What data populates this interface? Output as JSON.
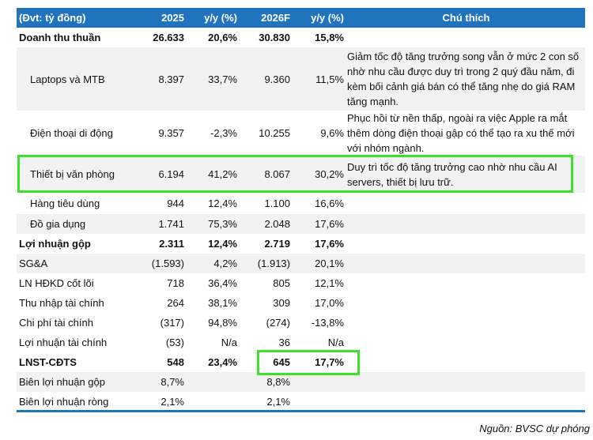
{
  "header": {
    "unit": "(Đvt: tỷ đồng)",
    "col_2025": "2025",
    "col_yy1": "y/y (%)",
    "col_2026": "2026F",
    "col_yy2": "y/y (%)",
    "col_note": "Chú thích"
  },
  "rows": [
    {
      "label": "Doanh thu thuần",
      "v2025": "26.633",
      "yy1": "20,6%",
      "v2026": "30.830",
      "yy2": "15,8%",
      "note": ""
    },
    {
      "label": "Laptops và MTB",
      "v2025": "8.397",
      "yy1": "33,7%",
      "v2026": "9.360",
      "yy2": "11,5%",
      "note": "Giảm tốc độ tăng trưởng song vẫn ở mức 2 con số nhờ nhu cầu được duy trì trong 2 quý đầu năm, đi kèm bối cảnh giá bán có thể tăng nhẹ do giá RAM tăng mạnh."
    },
    {
      "label": "Điện thoại di động",
      "v2025": "9.357",
      "yy1": "-2,3%",
      "v2026": "10.255",
      "yy2": "9,6%",
      "note": "Phục hồi từ nền thấp, ngoài ra việc Apple ra mắt thêm dòng điện thoại gập có thể tạo ra xu thế mới với nhóm ngành."
    },
    {
      "label": "Thiết bị văn phòng",
      "v2025": "6.194",
      "yy1": "41,2%",
      "v2026": "8.067",
      "yy2": "30,2%",
      "note": "Duy trì tốc độ tăng trưởng cao nhờ nhu cầu AI servers, thiết bị lưu trữ."
    },
    {
      "label": "Hàng tiêu dùng",
      "v2025": "944",
      "yy1": "12,4%",
      "v2026": "1.100",
      "yy2": "16,6%",
      "note": ""
    },
    {
      "label": "Đồ gia dụng",
      "v2025": "1.741",
      "yy1": "75,3%",
      "v2026": "2.048",
      "yy2": "17,6%",
      "note": ""
    },
    {
      "label": "Lợi nhuận gộp",
      "v2025": "2.311",
      "yy1": "12,4%",
      "v2026": "2.719",
      "yy2": "17,6%",
      "note": ""
    },
    {
      "label": "SG&A",
      "v2025": "(1.593)",
      "yy1": "4,2%",
      "v2026": "(1.913)",
      "yy2": "20,1%",
      "note": ""
    },
    {
      "label": "LN HĐKD cốt lõi",
      "v2025": "718",
      "yy1": "36,4%",
      "v2026": "805",
      "yy2": "12,1%",
      "note": ""
    },
    {
      "label": "Thu nhập tài chính",
      "v2025": "264",
      "yy1": "38,1%",
      "v2026": "309",
      "yy2": "17,0%",
      "note": ""
    },
    {
      "label": "Chi phí tài chính",
      "v2025": "(317)",
      "yy1": "94,8%",
      "v2026": "(274)",
      "yy2": "-13,8%",
      "note": ""
    },
    {
      "label": "Lợi nhuận tài chính",
      "v2025": "(53)",
      "yy1": "N/a",
      "v2026": "36",
      "yy2": "N/a",
      "note": ""
    },
    {
      "label": "LNST-CĐTS",
      "v2025": "548",
      "yy1": "23,4%",
      "v2026": "645",
      "yy2": "17,7%",
      "note": ""
    },
    {
      "label": "Biên lợi nhuận gộp",
      "v2025": "8,7%",
      "yy1": "",
      "v2026": "8,8%",
      "yy2": "",
      "note": ""
    },
    {
      "label": "Biên lợi nhuận ròng",
      "v2025": "2,1%",
      "yy1": "",
      "v2026": "2,1%",
      "yy2": "",
      "note": ""
    }
  ],
  "source": "Nguồn: BVSC dự phóng",
  "colors": {
    "header_bg": "#1f74bd",
    "highlight": "#3ee02a",
    "stripe": "#f2f2f2"
  }
}
